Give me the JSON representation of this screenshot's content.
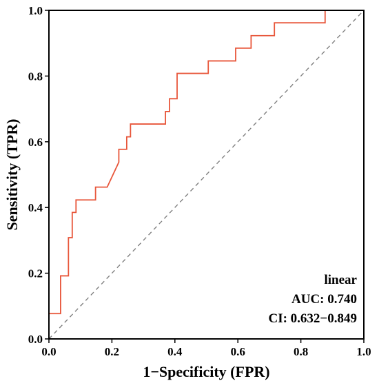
{
  "chart_data": {
    "type": "line",
    "xlabel": "1−Specificity (FPR)",
    "ylabel": "Sensitivity (TPR)",
    "xlim": [
      0,
      1
    ],
    "ylim": [
      0,
      1
    ],
    "xticks": [
      "0.0",
      "0.2",
      "0.4",
      "0.6",
      "0.8",
      "1.0"
    ],
    "yticks": [
      "0.0",
      "0.2",
      "0.4",
      "0.6",
      "0.8",
      "1.0"
    ],
    "grid": false,
    "series": [
      {
        "color": "#e8563a",
        "x": [
          0.0,
          0.0,
          0.037,
          0.037,
          0.062,
          0.062,
          0.074,
          0.074,
          0.086,
          0.086,
          0.148,
          0.148,
          0.185,
          0.222,
          0.222,
          0.247,
          0.247,
          0.259,
          0.259,
          0.37,
          0.37,
          0.383,
          0.383,
          0.407,
          0.407,
          0.506,
          0.506,
          0.593,
          0.593,
          0.642,
          0.642,
          0.716,
          0.716,
          0.877,
          0.877,
          1.0
        ],
        "y": [
          0.0,
          0.077,
          0.077,
          0.192,
          0.192,
          0.308,
          0.308,
          0.385,
          0.385,
          0.423,
          0.423,
          0.462,
          0.462,
          0.538,
          0.577,
          0.577,
          0.615,
          0.615,
          0.654,
          0.654,
          0.692,
          0.692,
          0.731,
          0.731,
          0.808,
          0.808,
          0.846,
          0.846,
          0.885,
          0.885,
          0.923,
          0.923,
          0.962,
          0.962,
          1.0,
          1.0
        ]
      }
    ],
    "reference_line": {
      "x": [
        0,
        1
      ],
      "y": [
        0,
        1
      ],
      "style": "dashed",
      "color": "#808080"
    },
    "annotations": {
      "model": "linear",
      "auc": "AUC: 0.740",
      "ci": "CI: 0.632−0.849"
    }
  }
}
